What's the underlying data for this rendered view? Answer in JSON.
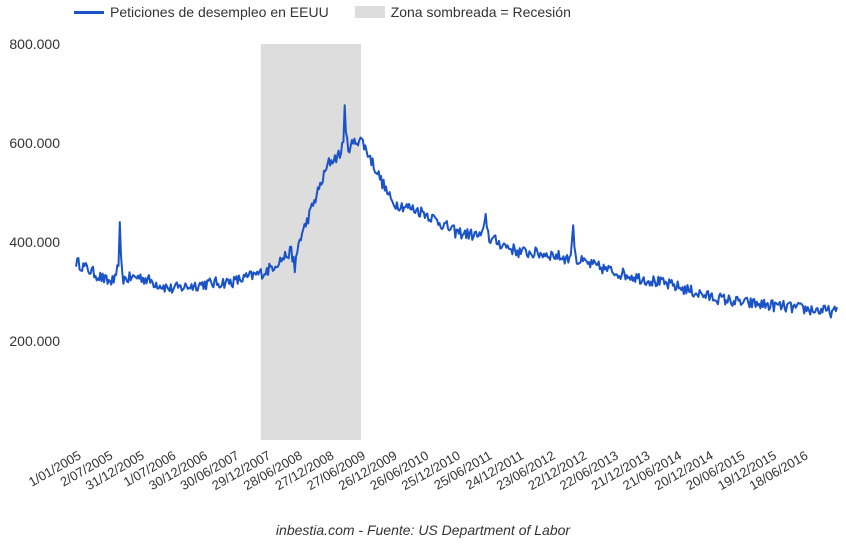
{
  "chart_data": {
    "type": "line",
    "series": [
      {
        "name": "Peticiones de desempleo en EEUU",
        "x": [
          "1/01/2005",
          "2/07/2005",
          "31/12/2005",
          "1/07/2006",
          "30/12/2006",
          "30/06/2007",
          "29/12/2007",
          "28/06/2008",
          "27/12/2008",
          "27/06/2009",
          "26/12/2009",
          "26/06/2010",
          "25/12/2010",
          "25/06/2011",
          "24/12/2011",
          "23/06/2012",
          "22/12/2012",
          "22/06/2013",
          "21/12/2013",
          "21/06/2014",
          "20/12/2014",
          "20/06/2015",
          "19/12/2015",
          "18/06/2016",
          "31/12/2016"
        ],
        "values": [
          360000,
          320000,
          330000,
          305000,
          315000,
          320000,
          340000,
          390000,
          560000,
          610000,
          480000,
          460000,
          420000,
          410000,
          380000,
          375000,
          360000,
          340000,
          325000,
          310000,
          290000,
          278000,
          272000,
          265000,
          258000
        ],
        "spikes": [
          {
            "x": "10/09/2005",
            "value": 430000
          },
          {
            "x": "14/06/2008",
            "value": 330000
          },
          {
            "x": "28/03/2009",
            "value": 665000
          },
          {
            "x": "18/06/2011",
            "value": 465000
          },
          {
            "x": "03/11/2012",
            "value": 445000
          }
        ],
        "color": "#1a53c8"
      }
    ],
    "recession": {
      "label": "Zona sombreada = Recesión",
      "start": "01/12/2007",
      "end": "30/06/2009",
      "color": "#dddddd"
    },
    "x_ticks": [
      "1/01/2005",
      "2/07/2005",
      "31/12/2005",
      "1/07/2006",
      "30/12/2006",
      "30/06/2007",
      "29/12/2007",
      "28/06/2008",
      "27/12/2008",
      "27/06/2009",
      "26/12/2009",
      "26/06/2010",
      "25/12/2010",
      "25/06/2011",
      "24/12/2011",
      "23/06/2012",
      "22/12/2012",
      "22/06/2013",
      "21/12/2013",
      "21/06/2014",
      "20/12/2014",
      "20/06/2015",
      "19/12/2015",
      "18/06/2016"
    ],
    "y_ticks": [
      "200.000",
      "400.000",
      "600.000",
      "800.000"
    ],
    "ylim": [
      0,
      800000
    ],
    "xlim": [
      "1/01/2005",
      "31/12/2016"
    ],
    "grid": false,
    "legend_position": "top-left",
    "source": "inbestia.com - Fuente: US Department of Labor"
  }
}
